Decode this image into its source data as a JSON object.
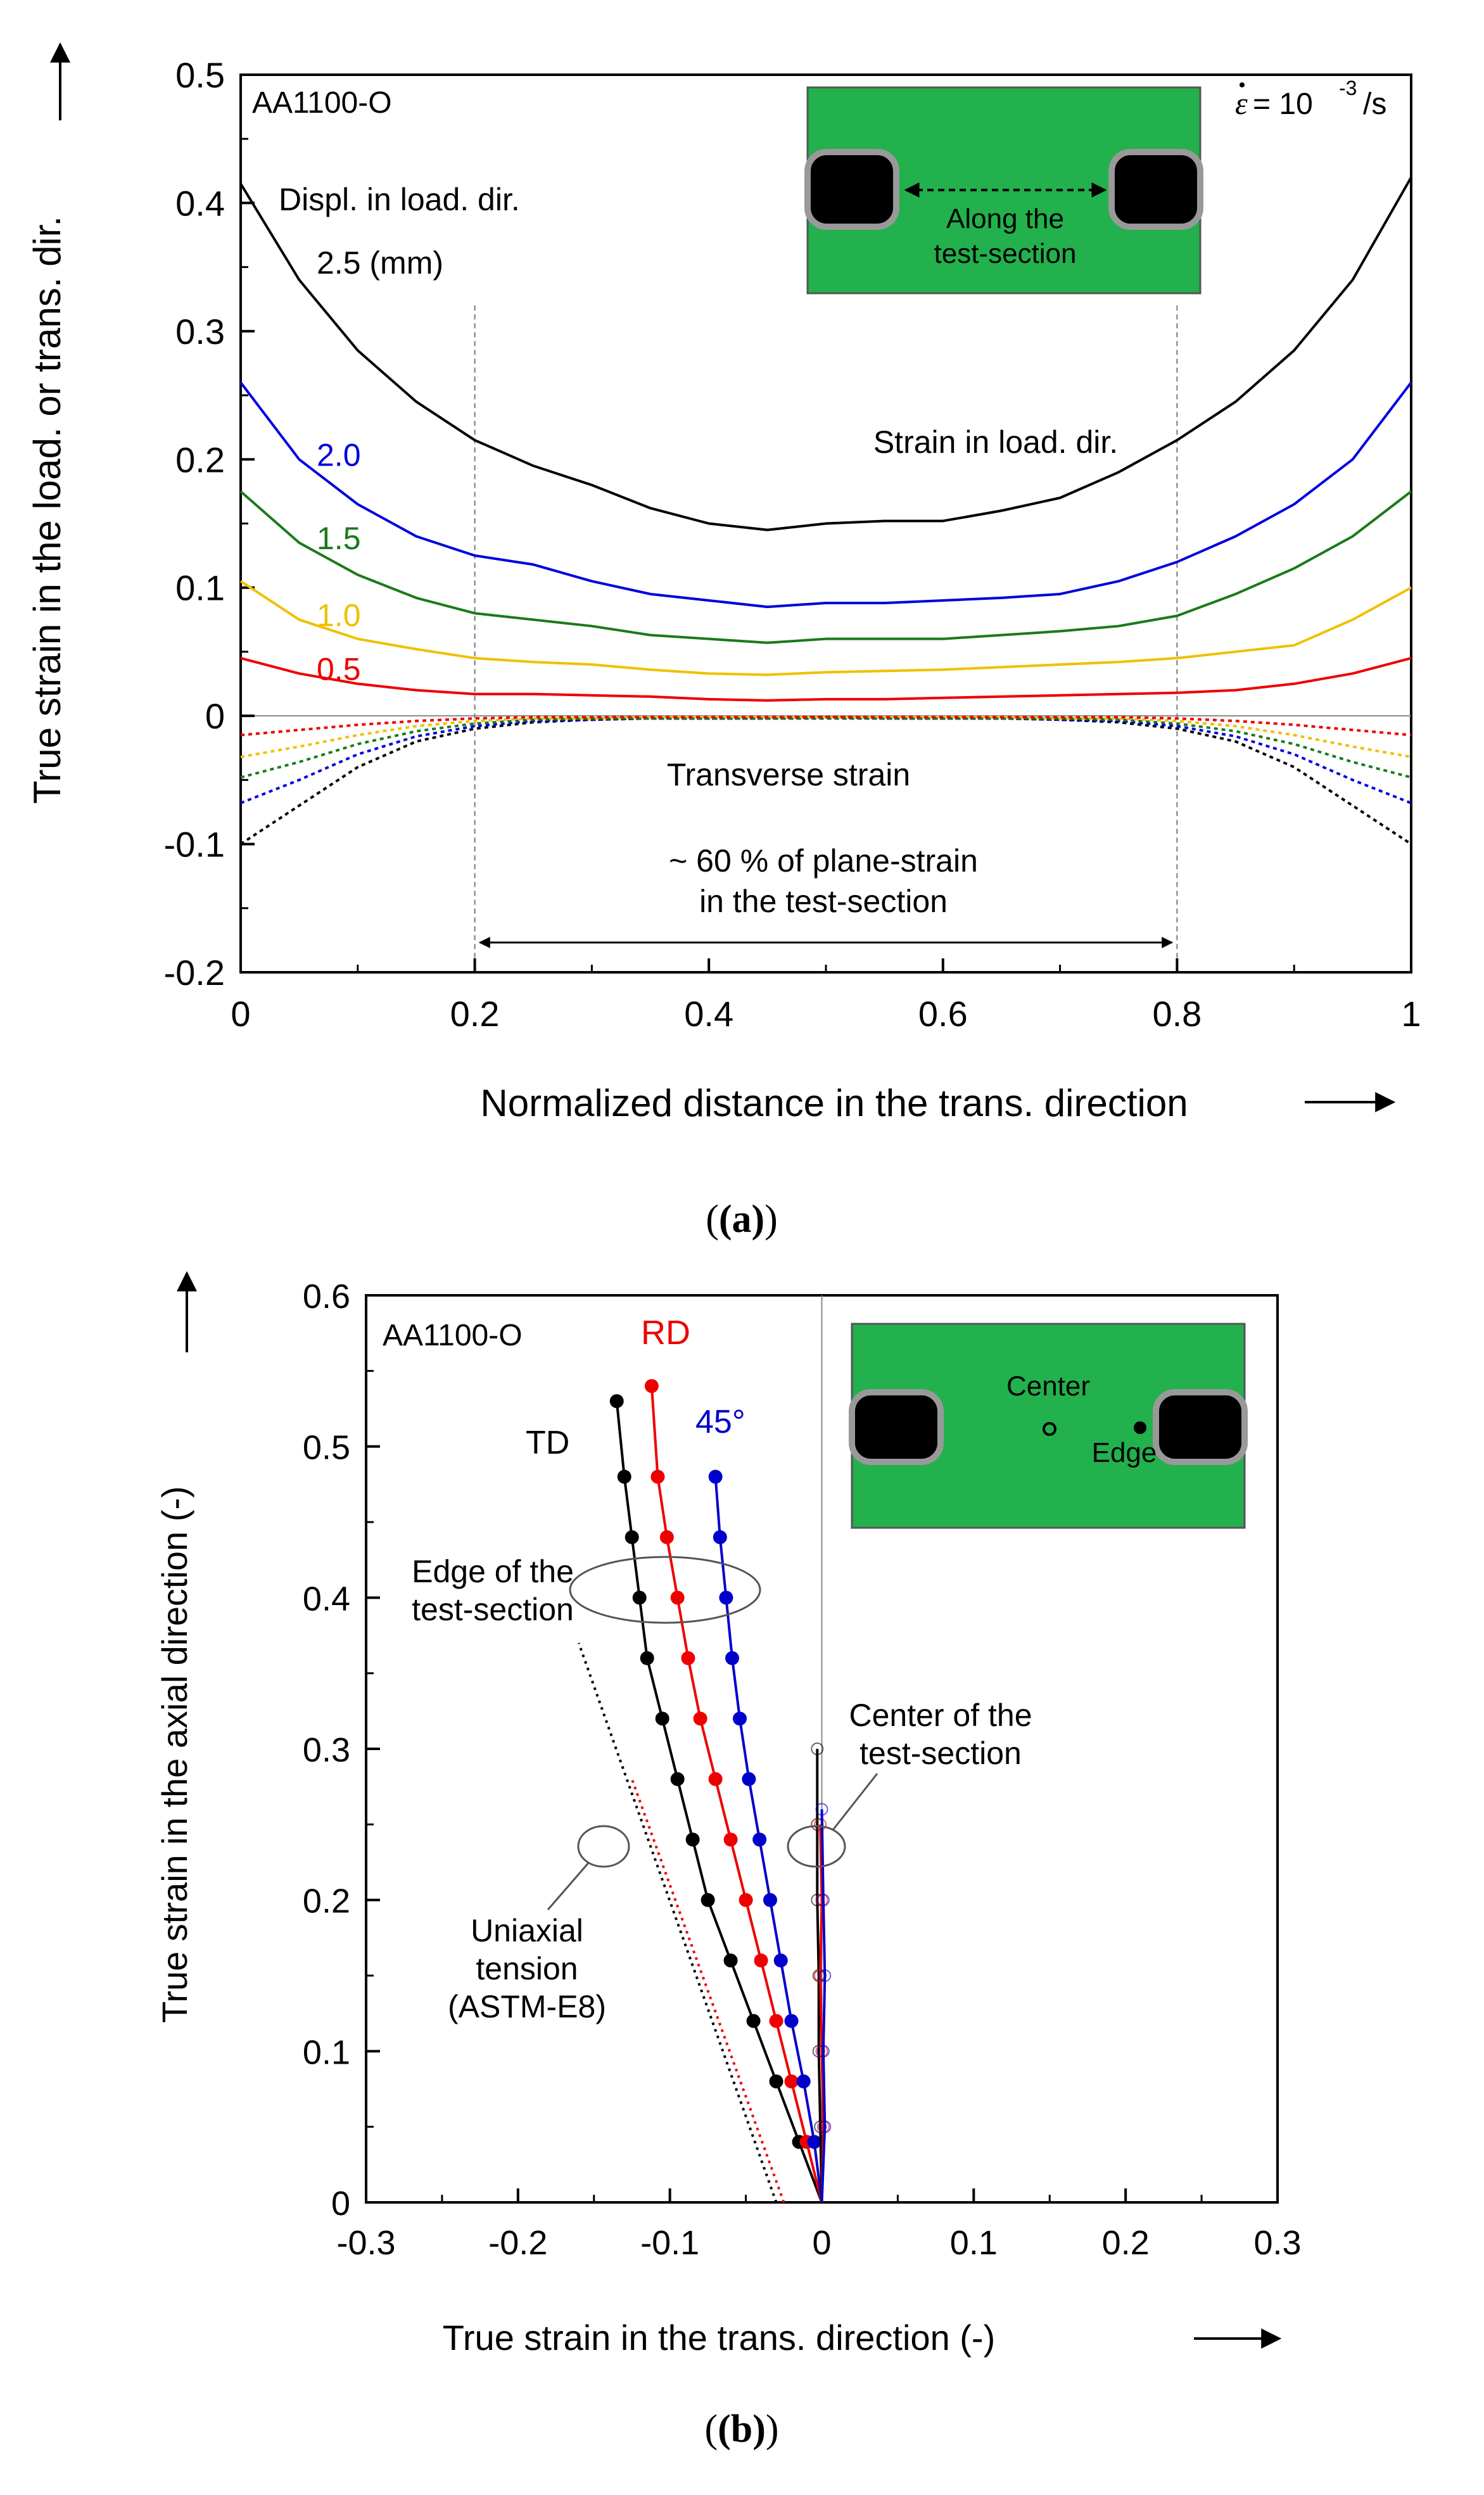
{
  "chart_data": [
    {
      "type": "line",
      "panel_label": "(a)",
      "xlabel": "Normalized distance in the trans. direction",
      "ylabel": "True strain in the load. or trans. dir.",
      "xlim": [
        0,
        1
      ],
      "ylim": [
        -0.2,
        0.5
      ],
      "x_ticks": [
        "0",
        "0.2",
        "0.4",
        "0.6",
        "0.8",
        "1"
      ],
      "y_ticks": [
        "-0.2",
        "-0.1",
        "0",
        "0.1",
        "0.2",
        "0.3",
        "0.4",
        "0.5"
      ],
      "annotations": {
        "material": "AA1100-O",
        "rate_label": "= 10",
        "rate_exp": "-3",
        "rate_unit": " /s",
        "displ_label": "Displ. in load. dir.",
        "longitudinal_label": "Strain in load. dir.",
        "transverse_label": "Transverse strain",
        "plane_strain_line1": "~ 60 % of plane-strain",
        "plane_strain_line2": "in the test-section",
        "inset_text_line1": "Along the",
        "inset_text_line2": "test-section"
      },
      "markers": {
        "vertical_lines": [
          0.2,
          0.8
        ],
        "arrow_range": [
          0.2,
          0.8
        ]
      },
      "x": [
        0,
        0.05,
        0.1,
        0.15,
        0.2,
        0.25,
        0.3,
        0.35,
        0.4,
        0.45,
        0.5,
        0.55,
        0.6,
        0.65,
        0.7,
        0.75,
        0.8,
        0.85,
        0.9,
        0.95,
        1
      ],
      "series": [
        {
          "name": "2.5 (mm)",
          "label": "2.5 (mm)",
          "color": "#000000",
          "kind": "longitudinal",
          "values": [
            0.415,
            0.34,
            0.285,
            0.245,
            0.215,
            0.195,
            0.18,
            0.162,
            0.15,
            0.145,
            0.15,
            0.152,
            0.152,
            0.16,
            0.17,
            0.19,
            0.215,
            0.245,
            0.285,
            0.34,
            0.42
          ]
        },
        {
          "name": "2.0",
          "label": "2.0",
          "color": "#0000dd",
          "kind": "longitudinal",
          "values": [
            0.26,
            0.2,
            0.165,
            0.14,
            0.125,
            0.118,
            0.105,
            0.095,
            0.09,
            0.085,
            0.088,
            0.088,
            0.09,
            0.092,
            0.095,
            0.105,
            0.12,
            0.14,
            0.165,
            0.2,
            0.26
          ]
        },
        {
          "name": "1.5",
          "label": "1.5",
          "color": "#1a7a1a",
          "kind": "longitudinal",
          "values": [
            0.175,
            0.135,
            0.11,
            0.092,
            0.08,
            0.075,
            0.07,
            0.063,
            0.06,
            0.057,
            0.06,
            0.06,
            0.06,
            0.063,
            0.066,
            0.07,
            0.078,
            0.095,
            0.115,
            0.14,
            0.175
          ]
        },
        {
          "name": "1.0",
          "label": "1.0",
          "color": "#f0c000",
          "kind": "longitudinal",
          "values": [
            0.105,
            0.075,
            0.06,
            0.052,
            0.045,
            0.042,
            0.04,
            0.036,
            0.033,
            0.032,
            0.034,
            0.035,
            0.036,
            0.038,
            0.04,
            0.042,
            0.045,
            0.05,
            0.055,
            0.075,
            0.1
          ]
        },
        {
          "name": "0.5",
          "label": "0.5",
          "color": "#ee0000",
          "kind": "longitudinal",
          "values": [
            0.045,
            0.033,
            0.025,
            0.02,
            0.017,
            0.017,
            0.016,
            0.015,
            0.013,
            0.012,
            0.013,
            0.013,
            0.014,
            0.015,
            0.016,
            0.017,
            0.018,
            0.02,
            0.025,
            0.033,
            0.045
          ]
        },
        {
          "name": "2.5 (mm) transverse",
          "color": "#000000",
          "kind": "transverse",
          "values": [
            -0.1,
            -0.07,
            -0.04,
            -0.02,
            -0.01,
            -0.005,
            -0.003,
            -0.002,
            -0.002,
            -0.002,
            -0.001,
            -0.002,
            -0.002,
            -0.002,
            -0.003,
            -0.005,
            -0.01,
            -0.02,
            -0.04,
            -0.07,
            -0.1
          ]
        },
        {
          "name": "2.0 transverse",
          "color": "#0000dd",
          "kind": "transverse",
          "values": [
            -0.068,
            -0.05,
            -0.03,
            -0.016,
            -0.008,
            -0.004,
            -0.003,
            -0.002,
            -0.002,
            -0.002,
            -0.002,
            -0.002,
            -0.002,
            -0.002,
            -0.003,
            -0.004,
            -0.008,
            -0.016,
            -0.03,
            -0.05,
            -0.068
          ]
        },
        {
          "name": "1.5 transverse",
          "color": "#1a7a1a",
          "kind": "transverse",
          "values": [
            -0.048,
            -0.036,
            -0.022,
            -0.012,
            -0.006,
            -0.003,
            -0.002,
            -0.002,
            -0.002,
            -0.002,
            -0.002,
            -0.002,
            -0.002,
            -0.002,
            -0.002,
            -0.003,
            -0.006,
            -0.012,
            -0.022,
            -0.036,
            -0.048
          ]
        },
        {
          "name": "1.0 transverse",
          "color": "#f0c000",
          "kind": "transverse",
          "values": [
            -0.032,
            -0.024,
            -0.015,
            -0.008,
            -0.004,
            -0.002,
            -0.002,
            -0.001,
            -0.001,
            -0.001,
            -0.001,
            -0.001,
            -0.001,
            -0.001,
            -0.002,
            -0.002,
            -0.004,
            -0.008,
            -0.015,
            -0.024,
            -0.032
          ]
        },
        {
          "name": "0.5 transverse",
          "color": "#ee0000",
          "kind": "transverse",
          "values": [
            -0.015,
            -0.011,
            -0.007,
            -0.004,
            -0.002,
            -0.001,
            -0.001,
            -0.001,
            -0.001,
            -0.001,
            -0.001,
            -0.001,
            -0.001,
            -0.001,
            -0.001,
            -0.001,
            -0.002,
            -0.004,
            -0.007,
            -0.011,
            -0.015
          ]
        }
      ]
    },
    {
      "type": "scatter",
      "panel_label": "(b)",
      "xlabel": "True strain in the trans. direction (-)",
      "ylabel": "True strain in the axial direction (-)",
      "xlim": [
        -0.3,
        0.3
      ],
      "ylim": [
        0,
        0.6
      ],
      "x_ticks": [
        "-0.3",
        "-0.2",
        "-0.1",
        "0",
        "0.1",
        "0.2",
        "0.3"
      ],
      "y_ticks": [
        "0",
        "0.1",
        "0.2",
        "0.3",
        "0.4",
        "0.5",
        "0.6"
      ],
      "annotations": {
        "material": "AA1100-O",
        "edge_label_line1": "Edge of the",
        "edge_label_line2": "test-section",
        "center_label_line1": "Center of the",
        "center_label_line2": "test-section",
        "uniaxial_line1": "Uniaxial",
        "uniaxial_line2": "tension",
        "uniaxial_line3": "(ASTM-E8)",
        "inset_center": "Center",
        "inset_edge": "Edge"
      },
      "series": [
        {
          "name": "TD",
          "color": "#000000",
          "location": "edge",
          "x": [
            0,
            -0.015,
            -0.03,
            -0.045,
            -0.06,
            -0.075,
            -0.085,
            -0.095,
            -0.105,
            -0.115,
            -0.12,
            -0.125,
            -0.13,
            -0.135
          ],
          "y": [
            0,
            0.04,
            0.08,
            0.12,
            0.16,
            0.2,
            0.24,
            0.28,
            0.32,
            0.36,
            0.4,
            0.44,
            0.48,
            0.53
          ]
        },
        {
          "name": "RD",
          "color": "#ee0000",
          "location": "edge",
          "x": [
            0,
            -0.01,
            -0.02,
            -0.03,
            -0.04,
            -0.05,
            -0.06,
            -0.07,
            -0.08,
            -0.088,
            -0.095,
            -0.102,
            -0.108,
            -0.112
          ],
          "y": [
            0,
            0.04,
            0.08,
            0.12,
            0.16,
            0.2,
            0.24,
            0.28,
            0.32,
            0.36,
            0.4,
            0.44,
            0.48,
            0.54
          ]
        },
        {
          "name": "45°",
          "color": "#0000cc",
          "location": "edge",
          "x": [
            0,
            -0.005,
            -0.012,
            -0.02,
            -0.027,
            -0.034,
            -0.041,
            -0.048,
            -0.054,
            -0.059,
            -0.063,
            -0.067,
            -0.07
          ],
          "y": [
            0,
            0.04,
            0.08,
            0.12,
            0.16,
            0.2,
            0.24,
            0.28,
            0.32,
            0.36,
            0.4,
            0.44,
            0.48
          ]
        },
        {
          "name": "TD center",
          "color": "#000000",
          "location": "center",
          "x": [
            0,
            -0.001,
            -0.002,
            -0.002,
            -0.003,
            -0.003,
            -0.003
          ],
          "y": [
            0,
            0.05,
            0.1,
            0.15,
            0.2,
            0.25,
            0.3
          ]
        },
        {
          "name": "RD center",
          "color": "#ee0000",
          "location": "center",
          "x": [
            0,
            0.001,
            0.0,
            -0.001,
            0.0,
            -0.001
          ],
          "y": [
            0,
            0.05,
            0.1,
            0.15,
            0.2,
            0.25
          ]
        },
        {
          "name": "45° center",
          "color": "#0000cc",
          "location": "center",
          "x": [
            0,
            0.002,
            0.001,
            0.002,
            0.001,
            0.0
          ],
          "y": [
            0,
            0.05,
            0.1,
            0.15,
            0.2,
            0.26
          ]
        }
      ],
      "uniaxial_lines": [
        {
          "name": "TD uniaxial",
          "color": "#000000",
          "x": [
            -0.03,
            -0.16
          ],
          "y": [
            0.0,
            0.37
          ]
        },
        {
          "name": "RD uniaxial",
          "color": "#ee0000",
          "x": [
            -0.025,
            -0.125
          ],
          "y": [
            0.0,
            0.28
          ]
        }
      ]
    }
  ]
}
